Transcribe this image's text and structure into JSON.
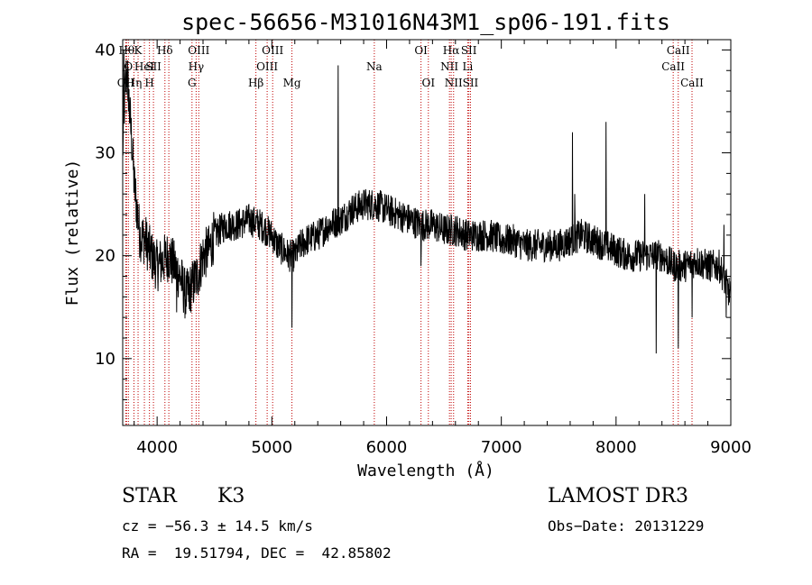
{
  "chart_data": {
    "type": "line",
    "title": "spec-56656-M31016N43M1_sp06-191.fits",
    "xlabel": "Wavelength (Å)",
    "ylabel": "Flux (relative)",
    "xlim": [
      3700,
      9000
    ],
    "ylim": [
      3.5,
      41
    ],
    "x_ticks": [
      4000,
      5000,
      6000,
      7000,
      8000,
      9000
    ],
    "y_ticks": [
      10,
      20,
      30,
      40
    ],
    "series_anchor_points": [
      [
        3700,
        30
      ],
      [
        3720,
        36
      ],
      [
        3740,
        38
      ],
      [
        3760,
        34
      ],
      [
        3780,
        31
      ],
      [
        3800,
        27
      ],
      [
        3850,
        22
      ],
      [
        3900,
        21.5
      ],
      [
        3950,
        20
      ],
      [
        4000,
        19
      ],
      [
        4050,
        19.5
      ],
      [
        4100,
        20
      ],
      [
        4150,
        19
      ],
      [
        4200,
        18
      ],
      [
        4250,
        16
      ],
      [
        4300,
        17
      ],
      [
        4350,
        18
      ],
      [
        4400,
        20
      ],
      [
        4450,
        20.5
      ],
      [
        4500,
        22
      ],
      [
        4600,
        23
      ],
      [
        4700,
        23
      ],
      [
        4800,
        23.5
      ],
      [
        4900,
        23
      ],
      [
        5000,
        22
      ],
      [
        5050,
        21
      ],
      [
        5100,
        20.5
      ],
      [
        5150,
        20
      ],
      [
        5200,
        20
      ],
      [
        5250,
        21
      ],
      [
        5300,
        21.5
      ],
      [
        5400,
        22
      ],
      [
        5500,
        23
      ],
      [
        5600,
        23.5
      ],
      [
        5700,
        24.5
      ],
      [
        5800,
        25
      ],
      [
        5900,
        25
      ],
      [
        6000,
        24.5
      ],
      [
        6100,
        24
      ],
      [
        6200,
        23.5
      ],
      [
        6300,
        23
      ],
      [
        6400,
        23
      ],
      [
        6500,
        22.5
      ],
      [
        6600,
        22.5
      ],
      [
        6700,
        22
      ],
      [
        6800,
        22
      ],
      [
        6900,
        22
      ],
      [
        7000,
        21.5
      ],
      [
        7100,
        21.5
      ],
      [
        7200,
        21
      ],
      [
        7300,
        21
      ],
      [
        7400,
        21
      ],
      [
        7500,
        21
      ],
      [
        7600,
        21.5
      ],
      [
        7700,
        22
      ],
      [
        7800,
        21.5
      ],
      [
        7900,
        21
      ],
      [
        8000,
        20.5
      ],
      [
        8100,
        20
      ],
      [
        8200,
        20
      ],
      [
        8300,
        20
      ],
      [
        8400,
        20
      ],
      [
        8500,
        19
      ],
      [
        8600,
        19
      ],
      [
        8700,
        19.5
      ],
      [
        8800,
        19
      ],
      [
        8900,
        19
      ],
      [
        9000,
        16
      ]
    ],
    "series_spikes": [
      [
        3710,
        40
      ],
      [
        3730,
        39
      ],
      [
        3745,
        35
      ],
      [
        4170,
        14.5
      ],
      [
        4280,
        14.8
      ],
      [
        5175,
        13
      ],
      [
        5577,
        38.5
      ],
      [
        6300,
        19
      ],
      [
        7620,
        32
      ],
      [
        7640,
        26
      ],
      [
        7913,
        33
      ],
      [
        8250,
        26
      ],
      [
        8350,
        10.5
      ],
      [
        8542,
        11
      ],
      [
        8662,
        14
      ],
      [
        8940,
        23
      ],
      [
        8960,
        14
      ]
    ],
    "noise_amplitude": 1.6,
    "lines": [
      {
        "w": 3734,
        "label": "Hθ",
        "row": 0
      },
      {
        "w": 3750,
        "label": "O",
        "row": 1
      },
      {
        "w": 3727,
        "label": "OII",
        "row": 2
      },
      {
        "w": 3798,
        "label": "Hη",
        "row": 2
      },
      {
        "w": 3834,
        "label": "K",
        "row": 0
      },
      {
        "w": 3889,
        "label": "HeI",
        "row": 1
      },
      {
        "w": 3933,
        "label": "H",
        "row": 2
      },
      {
        "w": 3968,
        "label": "SII",
        "row": 1
      },
      {
        "w": 4068,
        "label": "Hδ",
        "row": 0
      },
      {
        "w": 4102,
        "label": "",
        "row": 1
      },
      {
        "w": 4304,
        "label": "G",
        "row": 2
      },
      {
        "w": 4340,
        "label": "Hγ",
        "row": 1
      },
      {
        "w": 4363,
        "label": "OIII",
        "row": 0
      },
      {
        "w": 4861,
        "label": "Hβ",
        "row": 2
      },
      {
        "w": 4959,
        "label": "OIII",
        "row": 1
      },
      {
        "w": 5007,
        "label": "OIII",
        "row": 0
      },
      {
        "w": 5175,
        "label": "Mg",
        "row": 2
      },
      {
        "w": 5893,
        "label": "Na",
        "row": 1
      },
      {
        "w": 6300,
        "label": "OI",
        "row": 0
      },
      {
        "w": 6364,
        "label": "OI",
        "row": 2
      },
      {
        "w": 6548,
        "label": "NII",
        "row": 1
      },
      {
        "w": 6563,
        "label": "Hα",
        "row": 0
      },
      {
        "w": 6584,
        "label": "NII",
        "row": 2
      },
      {
        "w": 6707,
        "label": "Li",
        "row": 1
      },
      {
        "w": 6717,
        "label": "SII",
        "row": 0
      },
      {
        "w": 6731,
        "label": "SII",
        "row": 2
      },
      {
        "w": 8498,
        "label": "CaII",
        "row": 1
      },
      {
        "w": 8542,
        "label": "CaII",
        "row": 0
      },
      {
        "w": 8662,
        "label": "CaII",
        "row": 2
      }
    ]
  },
  "info": {
    "class": "STAR",
    "subclass": "K3",
    "survey": "LAMOST DR3",
    "cz": "cz = −56.3 ± 14.5 km/s",
    "obs_date": "Obs−Date: 20131229",
    "coords": "RA =  19.51794, DEC =  42.85802"
  },
  "colors": {
    "spectrum": "#000000",
    "line_markers": "#c00000",
    "axes": "#000000"
  }
}
